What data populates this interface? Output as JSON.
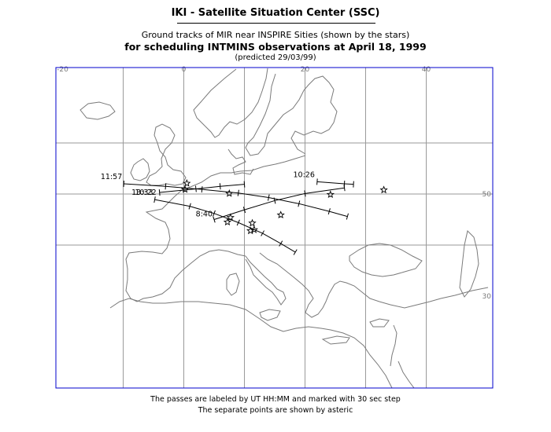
{
  "header": {
    "title": "IKI - Satellite Situation Center (SSC)",
    "subtitle": "Ground tracks of MIR near INSPIRE Sities (shown by the stars)",
    "schedule": "for scheduling INTMINS observations at April 18, 1999",
    "predicted": "(predicted 29/03/99)"
  },
  "map": {
    "lon_range": [
      -20,
      50
    ],
    "lat_range": [
      30,
      64
    ],
    "lon_labels": [
      "-20",
      "0",
      "20",
      "40"
    ],
    "lat_labels": [
      "50",
      "30"
    ],
    "grid": true,
    "colors": {
      "frame": "#0000cc",
      "grid": "#9a9a9a",
      "coast": "#7a7a7a",
      "track": "#000000"
    }
  },
  "passes": [
    {
      "label": "11:57",
      "points": [
        [
          -9.9,
          52.0
        ],
        [
          -3.0,
          51.5
        ],
        [
          3.0,
          50.9
        ],
        [
          9.0,
          50.2
        ],
        [
          14.0,
          49.3
        ],
        [
          19.0,
          48.1
        ],
        [
          24.0,
          46.6
        ],
        [
          27.0,
          45.6
        ]
      ]
    },
    {
      "label": "10:22",
      "points": [
        [
          -4.0,
          50.3
        ],
        [
          2.0,
          51.0
        ],
        [
          6.0,
          51.5
        ],
        [
          10.0,
          51.9
        ]
      ]
    },
    {
      "label": "13:33",
      "points": [
        [
          -4.8,
          48.9
        ],
        [
          1.0,
          47.6
        ],
        [
          5.0,
          46.2
        ],
        [
          9.0,
          44.4
        ],
        [
          13.0,
          42.3
        ],
        [
          16.0,
          40.3
        ],
        [
          18.4,
          38.6
        ]
      ]
    },
    {
      "label": "8:40",
      "points": [
        [
          5.0,
          45.0
        ],
        [
          10.0,
          46.9
        ],
        [
          15.0,
          48.7
        ],
        [
          20.0,
          50.1
        ],
        [
          26.5,
          51.2
        ]
      ]
    },
    {
      "label": "10:26",
      "points": [
        [
          22.0,
          52.4
        ],
        [
          26.5,
          52.0
        ],
        [
          28.0,
          51.9
        ]
      ]
    }
  ],
  "sites": [
    [
      0.5,
      52.1
    ],
    [
      0.2,
      50.9
    ],
    [
      7.5,
      50.1
    ],
    [
      33.0,
      50.8
    ],
    [
      24.2,
      49.9
    ],
    [
      16.0,
      45.9
    ],
    [
      7.7,
      45.4
    ],
    [
      7.2,
      44.5
    ],
    [
      11.3,
      44.3
    ],
    [
      11.0,
      42.8
    ],
    [
      11.6,
      43.0
    ]
  ],
  "footer": {
    "line1": "The passes are labeled by UT HH:MM and marked with 30 sec step",
    "line2": "The separate points are shown by asteric"
  }
}
